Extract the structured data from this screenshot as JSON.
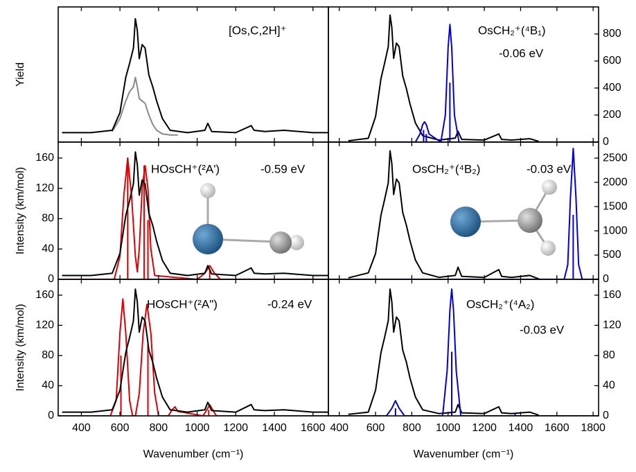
{
  "chart_data": [
    {
      "type": "line",
      "ylabel": "Yield",
      "xlim": [
        280,
        1680
      ],
      "ylim": [
        -0.05,
        1.1
      ],
      "xticks": [
        400,
        600,
        800,
        1000,
        1200,
        1400,
        1600
      ],
      "annotations": [
        "[Os,C,2H]⁺"
      ],
      "series": [
        {
          "color": "#888888",
          "style": "line",
          "x": [
            560,
            600,
            630,
            650,
            670,
            680,
            690,
            700,
            715,
            730,
            750,
            770,
            790,
            820,
            860,
            900
          ],
          "values": [
            0.04,
            0.15,
            0.3,
            0.38,
            0.42,
            0.5,
            0.42,
            0.32,
            0.3,
            0.28,
            0.18,
            0.1,
            0.05,
            0.02,
            0.01,
            0.01
          ]
        },
        {
          "color": "#000000",
          "style": "line",
          "x": [
            300,
            450,
            560,
            600,
            630,
            650,
            670,
            680,
            690,
            700,
            715,
            730,
            750,
            770,
            790,
            820,
            860,
            950,
            1040,
            1055,
            1075,
            1200,
            1280,
            1295,
            1350,
            1450,
            1600,
            1680
          ],
          "values": [
            0.03,
            0.03,
            0.05,
            0.2,
            0.5,
            0.62,
            0.75,
            1.0,
            0.9,
            0.66,
            0.78,
            0.75,
            0.52,
            0.42,
            0.3,
            0.15,
            0.05,
            0.03,
            0.05,
            0.11,
            0.04,
            0.03,
            0.09,
            0.05,
            0.04,
            0.05,
            0.03,
            0.03
          ]
        }
      ]
    },
    {
      "type": "line",
      "xlim": [
        340,
        1830
      ],
      "ylim": [
        0,
        1000
      ],
      "xticks": [
        400,
        600,
        800,
        1000,
        1200,
        1400,
        1600,
        1800
      ],
      "yticks": [
        0,
        200,
        400,
        600,
        800
      ],
      "annotations": [
        "OsCH₂⁺(⁴B₁)",
        "-0.06 eV"
      ],
      "series": [
        {
          "color": "#000000",
          "style": "line",
          "x": [
            450,
            560,
            600,
            630,
            650,
            670,
            680,
            690,
            700,
            715,
            730,
            750,
            770,
            790,
            820,
            860,
            950,
            1040,
            1055,
            1075,
            1200,
            1280,
            1295,
            1350,
            1450,
            1500
          ],
          "values": [
            10,
            28,
            188,
            470,
            583,
            705,
            940,
            846,
            620,
            733,
            705,
            489,
            395,
            282,
            141,
            47,
            15,
            30,
            80,
            20,
            15,
            60,
            20,
            15,
            25,
            5
          ]
        },
        {
          "color": "#0000dd",
          "style": "line",
          "x": [
            340,
            820,
            845,
            860,
            870,
            880,
            895,
            960,
            985,
            1000,
            1010,
            1020,
            1035,
            1060,
            1830
          ],
          "values": [
            0,
            0,
            60,
            130,
            150,
            130,
            60,
            0,
            200,
            700,
            870,
            700,
            200,
            0,
            0
          ]
        },
        {
          "color": "#0000dd",
          "style": "sticks",
          "x": [
            865,
            880,
            1010
          ],
          "values": [
            90,
            60,
            440
          ]
        }
      ]
    },
    {
      "type": "line",
      "ylabel": "Intensity (km/mol)",
      "xlim": [
        280,
        1680
      ],
      "ylim": [
        0,
        181
      ],
      "xticks": [
        400,
        600,
        800,
        1000,
        1200,
        1400,
        1600
      ],
      "yticks": [
        0,
        40,
        80,
        120,
        160
      ],
      "annotations": [
        "HOsCH⁺(²A')",
        "-0.59 eV"
      ],
      "series": [
        {
          "color": "#e00000",
          "style": "line",
          "x": [
            280,
            570,
            600,
            620,
            640,
            660,
            680,
            690,
            700,
            715,
            730,
            745,
            760,
            780,
            1000,
            1040,
            1065,
            1090,
            1120,
            1680
          ],
          "values": [
            0,
            0,
            30,
            110,
            160,
            110,
            30,
            10,
            40,
            120,
            150,
            120,
            40,
            5,
            0,
            8,
            18,
            8,
            0,
            0
          ]
        },
        {
          "color": "#e00000",
          "style": "sticks",
          "x": [
            640,
            725,
            745,
            1065
          ],
          "values": [
            160,
            150,
            78,
            12
          ]
        },
        {
          "color": "#000000",
          "style": "line",
          "x": [
            300,
            450,
            560,
            600,
            630,
            650,
            670,
            680,
            690,
            700,
            715,
            730,
            750,
            770,
            790,
            820,
            860,
            950,
            1040,
            1055,
            1075,
            1200,
            1280,
            1295,
            1350,
            1450,
            1600,
            1680
          ],
          "values": [
            5,
            5,
            8,
            34,
            84,
            104,
            126,
            168,
            151,
            111,
            131,
            126,
            87,
            71,
            50,
            25,
            8,
            5,
            8,
            18,
            7,
            5,
            15,
            8,
            7,
            8,
            5,
            5
          ]
        }
      ]
    },
    {
      "type": "line",
      "xlim": [
        340,
        1830
      ],
      "ylim": [
        0,
        2830
      ],
      "xticks": [
        400,
        600,
        800,
        1000,
        1200,
        1400,
        1600,
        1800
      ],
      "yticks": [
        0,
        500,
        1000,
        1500,
        2000,
        2500
      ],
      "annotations": [
        "OsCH₂⁺(⁴B₂)",
        "-0.03 eV"
      ],
      "series": [
        {
          "color": "#000000",
          "style": "line",
          "x": [
            450,
            560,
            600,
            630,
            650,
            670,
            680,
            690,
            700,
            715,
            730,
            750,
            770,
            790,
            820,
            860,
            950,
            1040,
            1055,
            1075,
            1200,
            1280,
            1295,
            1350,
            1450,
            1500
          ],
          "values": [
            30,
            133,
            530,
            1325,
            1643,
            1988,
            2650,
            2385,
            1749,
            2067,
            1988,
            1378,
            1113,
            795,
            398,
            133,
            40,
            80,
            250,
            60,
            40,
            200,
            60,
            40,
            80,
            10
          ]
        },
        {
          "color": "#0000dd",
          "style": "line",
          "x": [
            340,
            1640,
            1660,
            1675,
            1690,
            1705,
            1720,
            1740,
            1830
          ],
          "values": [
            0,
            0,
            300,
            1700,
            2700,
            1700,
            300,
            0,
            0
          ]
        },
        {
          "color": "#0000dd",
          "style": "sticks",
          "x": [
            1690
          ],
          "values": [
            1330
          ]
        }
      ]
    },
    {
      "type": "line",
      "ylabel": "Intensity (km/mol)",
      "xlabel": "Wavenumber (cm⁻¹)",
      "xtick_labels": true,
      "xlim": [
        280,
        1680
      ],
      "ylim": [
        0,
        181
      ],
      "xticks": [
        400,
        600,
        800,
        1000,
        1200,
        1400,
        1600
      ],
      "yticks": [
        0,
        40,
        80,
        120,
        160
      ],
      "annotations": [
        "HOsCH⁺(²A\")",
        "-0.24 eV"
      ],
      "series": [
        {
          "color": "#e00000",
          "style": "line",
          "x": [
            280,
            550,
            580,
            600,
            615,
            630,
            650,
            665,
            680,
            700,
            720,
            740,
            760,
            780,
            800,
            850,
            870,
            885,
            900,
            1030,
            1050,
            1065,
            1080,
            1100,
            1680
          ],
          "values": [
            0,
            0,
            20,
            110,
            155,
            110,
            20,
            0,
            0,
            30,
            110,
            148,
            110,
            30,
            0,
            0,
            8,
            12,
            6,
            0,
            8,
            15,
            8,
            0,
            0
          ]
        },
        {
          "color": "#e00000",
          "style": "sticks",
          "x": [
            605,
            745,
            1060
          ],
          "values": [
            80,
            95,
            8
          ]
        },
        {
          "color": "#000000",
          "style": "line",
          "x": [
            300,
            450,
            560,
            600,
            630,
            650,
            670,
            680,
            690,
            700,
            715,
            730,
            750,
            770,
            790,
            820,
            860,
            950,
            1040,
            1055,
            1075,
            1200,
            1280,
            1295,
            1350,
            1450,
            1600,
            1680
          ],
          "values": [
            5,
            5,
            8,
            34,
            84,
            104,
            126,
            168,
            151,
            111,
            131,
            126,
            87,
            71,
            50,
            25,
            8,
            5,
            8,
            18,
            7,
            5,
            15,
            8,
            7,
            8,
            5,
            5
          ]
        }
      ]
    },
    {
      "type": "line",
      "xlabel": "Wavenumber (cm⁻¹)",
      "xtick_labels": true,
      "xlim": [
        340,
        1830
      ],
      "ylim": [
        0,
        181
      ],
      "xticks": [
        400,
        600,
        800,
        1000,
        1200,
        1400,
        1600,
        1800
      ],
      "yticks": [
        0,
        40,
        80,
        120,
        160
      ],
      "annotations": [
        "OsCH₂⁺(⁴A₂)",
        "-0.03 eV"
      ],
      "series": [
        {
          "color": "#000000",
          "style": "line",
          "x": [
            450,
            560,
            600,
            630,
            650,
            670,
            680,
            690,
            700,
            715,
            730,
            750,
            770,
            790,
            820,
            860,
            950,
            1040,
            1055,
            1075,
            1200,
            1280,
            1295,
            1350,
            1450,
            1500
          ],
          "values": [
            2,
            5,
            34,
            84,
            104,
            126,
            168,
            151,
            111,
            131,
            126,
            87,
            71,
            50,
            25,
            8,
            3,
            5,
            15,
            4,
            3,
            12,
            4,
            3,
            5,
            1
          ]
        },
        {
          "color": "#0000dd",
          "style": "line",
          "x": [
            340,
            660,
            690,
            710,
            730,
            760,
            970,
            995,
            1010,
            1020,
            1030,
            1045,
            1070,
            1830
          ],
          "values": [
            0,
            0,
            10,
            20,
            10,
            0,
            0,
            60,
            140,
            168,
            140,
            60,
            0,
            0
          ]
        },
        {
          "color": "#0000dd",
          "style": "sticks",
          "x": [
            710,
            1020,
            1370
          ],
          "values": [
            10,
            85,
            3
          ]
        }
      ]
    }
  ]
}
